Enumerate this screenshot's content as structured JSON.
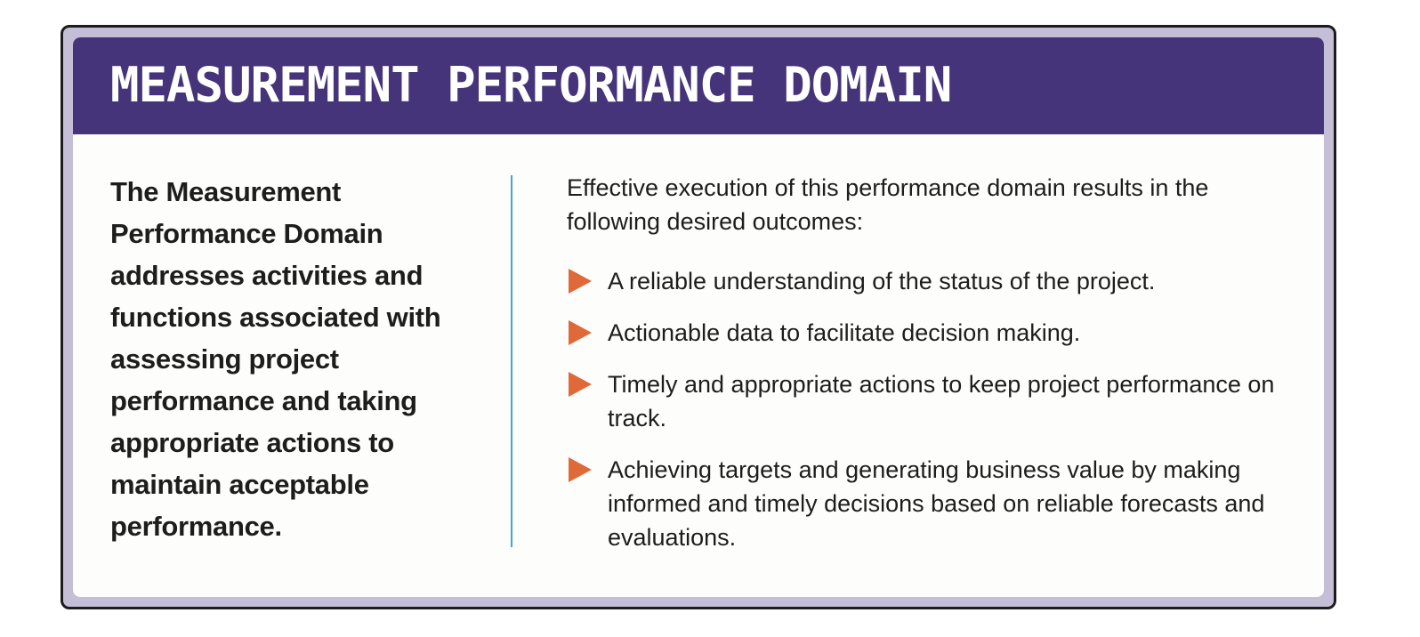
{
  "header": {
    "title": "MEASUREMENT PERFORMANCE DOMAIN"
  },
  "left_panel": {
    "description": "The Measurement Performance Domain addresses activities and functions associated with assessing project performance and taking appropriate actions to maintain acceptable performance."
  },
  "right_panel": {
    "intro": "Effective execution of this performance domain results in the following desired outcomes:",
    "outcomes": [
      "A reliable understanding of the status of the project.",
      "Actionable data to facilitate decision making.",
      "Timely and appropriate actions to keep project performance on track.",
      "Achieving targets and generating business value by making informed and timely decisions based on reliable forecasts and evaluations."
    ]
  },
  "colors": {
    "header_background": "#46347a",
    "frame": "#c4bfd6",
    "divider": "#4aa3c9",
    "bullet": "#e0693a"
  }
}
